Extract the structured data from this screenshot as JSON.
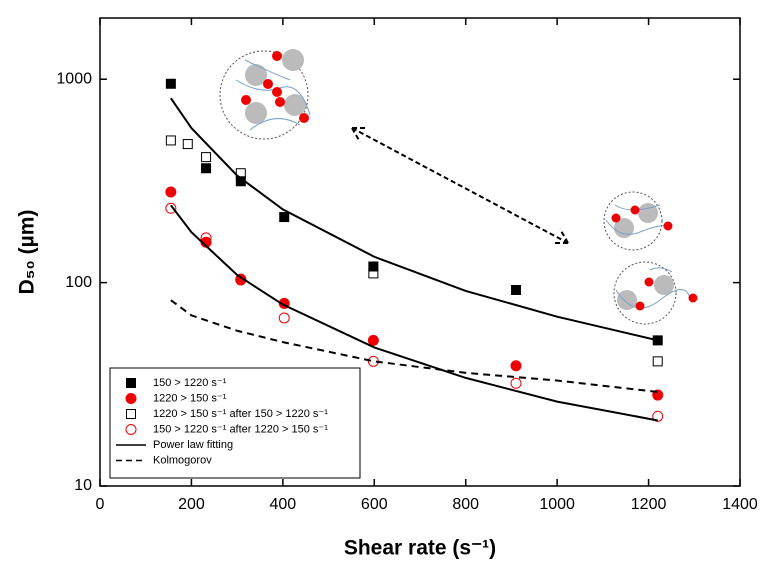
{
  "chart_data": {
    "type": "scatter",
    "x_label": "Shear rate (s⁻¹)",
    "y_label": "D₅₀ (µm)",
    "xlim": [
      0,
      1400
    ],
    "xticks": [
      0,
      200,
      400,
      600,
      800,
      1000,
      1200,
      1400
    ],
    "ylim": [
      10,
      2000
    ],
    "yticks": [
      10,
      100,
      1000
    ],
    "y_scale": "log",
    "legend": "lower left",
    "series": [
      {
        "name": "150 > 1220 s⁻¹",
        "color": "#000000",
        "marker": "square",
        "filled": true,
        "x": [
          155,
          232,
          308,
          403,
          598,
          910,
          1220
        ],
        "values": [
          950,
          365,
          315,
          210,
          120,
          92,
          52
        ]
      },
      {
        "name": "1220 > 150 s⁻¹",
        "color": "#ee0000",
        "marker": "circle",
        "filled": true,
        "x": [
          155,
          232,
          308,
          403,
          598,
          910,
          1220
        ],
        "values": [
          279,
          158,
          104,
          79,
          52,
          39,
          28
        ]
      },
      {
        "name": "1220 > 150 s⁻¹ after 150 > 1220 s⁻¹",
        "color": "#000000",
        "marker": "square",
        "filled": false,
        "x": [
          155,
          192,
          232,
          308,
          598,
          1220
        ],
        "values": [
          500,
          480,
          414,
          345,
          111,
          41
        ]
      },
      {
        "name": "150 > 1220 s⁻¹ after 1220 > 150 s⁻¹",
        "color": "#ee0000",
        "marker": "circle",
        "filled": false,
        "x": [
          155,
          232,
          308,
          403,
          598,
          910,
          1220
        ],
        "values": [
          232,
          166,
          103,
          67,
          41,
          32,
          22
        ]
      },
      {
        "name": "Power law fitting",
        "color": "#000000",
        "marker": "line",
        "dashed": false,
        "x": [
          155,
          200,
          300,
          400,
          600,
          800,
          1000,
          1220
        ],
        "values": [
          807,
          575,
          336,
          229,
          134,
          91,
          68,
          52
        ]
      },
      {
        "color": "#000000",
        "marker": "line",
        "dashed": false,
        "x": [
          155,
          200,
          300,
          400,
          600,
          800,
          1000,
          1220
        ],
        "values": [
          240,
          177,
          109,
          78,
          48,
          34,
          26,
          21
        ]
      },
      {
        "name": "Kolmogorov",
        "color": "#000000",
        "marker": "line",
        "dashed": true,
        "x": [
          155,
          200,
          300,
          400,
          600,
          800,
          1000,
          1220
        ],
        "values": [
          82,
          69,
          58,
          51,
          41,
          36,
          33,
          29
        ]
      }
    ]
  }
}
